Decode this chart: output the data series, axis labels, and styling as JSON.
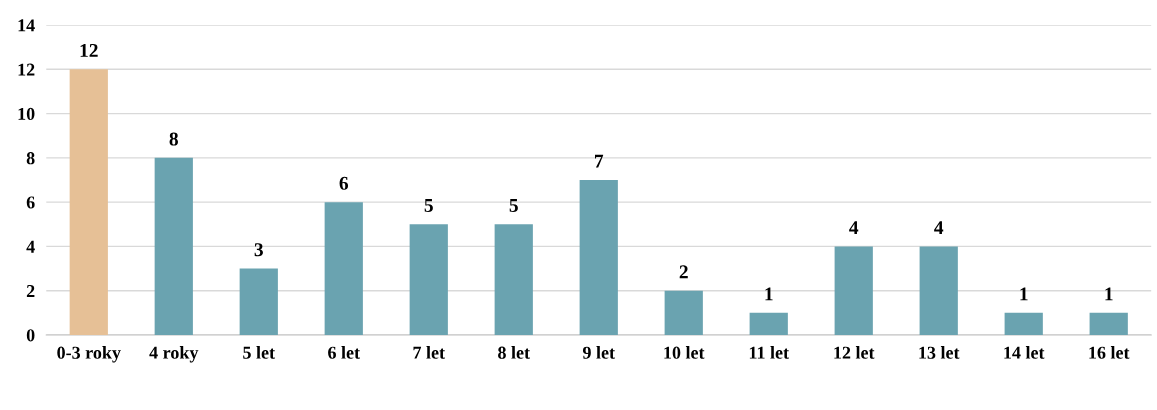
{
  "chart_data": {
    "type": "bar",
    "categories": [
      "0-3 roky",
      "4 roky",
      "5 let",
      "6 let",
      "7 let",
      "8 let",
      "9 let",
      "10 let",
      "11 let",
      "12 let",
      "13 let",
      "14 let",
      "16 let"
    ],
    "values": [
      12,
      8,
      3,
      6,
      5,
      5,
      7,
      2,
      1,
      4,
      4,
      1,
      1
    ],
    "colors": [
      "#e6c096",
      "#6aa3b0",
      "#6aa3b0",
      "#6aa3b0",
      "#6aa3b0",
      "#6aa3b0",
      "#6aa3b0",
      "#6aa3b0",
      "#6aa3b0",
      "#6aa3b0",
      "#6aa3b0",
      "#6aa3b0",
      "#6aa3b0"
    ],
    "ylim": [
      0,
      14
    ],
    "yticks": [
      0,
      2,
      4,
      6,
      8,
      10,
      12,
      14
    ],
    "grid": "y",
    "data_labels": true
  }
}
